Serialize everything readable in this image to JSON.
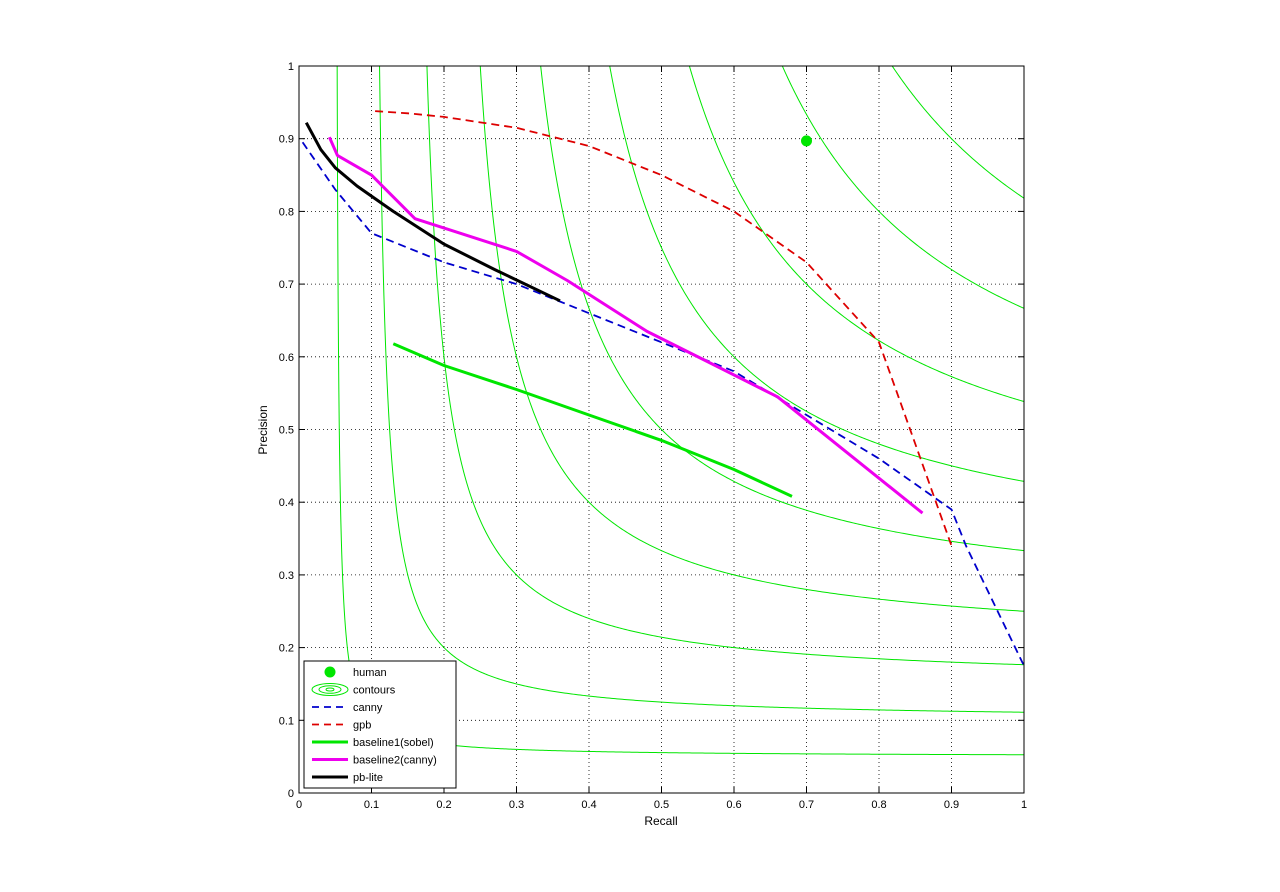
{
  "chart_data": {
    "type": "line",
    "title": "",
    "xlabel": "Recall",
    "ylabel": "Precision",
    "xlim": [
      0,
      1
    ],
    "ylim": [
      0,
      1
    ],
    "xticks": [
      "0",
      "0.1",
      "0.2",
      "0.3",
      "0.4",
      "0.5",
      "0.6",
      "0.7",
      "0.8",
      "0.9",
      "1"
    ],
    "yticks": [
      "0",
      "0.1",
      "0.2",
      "0.3",
      "0.4",
      "0.5",
      "0.6",
      "0.7",
      "0.8",
      "0.9",
      "1"
    ],
    "grid": true,
    "legend_position": "bottom-left",
    "contour_levels": [
      0.1,
      0.2,
      0.3,
      0.4,
      0.5,
      0.6,
      0.7,
      0.8,
      0.9
    ],
    "series": [
      {
        "name": "human",
        "style": "marker",
        "color": "#00e600",
        "x": [
          0.7
        ],
        "y": [
          0.897
        ]
      },
      {
        "name": "contours",
        "style": "contour",
        "color": "#00e600",
        "x": [],
        "y": []
      },
      {
        "name": "canny",
        "style": "dashed",
        "color": "#0000cc",
        "x": [
          0.005,
          0.05,
          0.1,
          0.2,
          0.3,
          0.4,
          0.5,
          0.6,
          0.7,
          0.8,
          0.9,
          0.92,
          1.0
        ],
        "y": [
          0.895,
          0.83,
          0.77,
          0.73,
          0.7,
          0.66,
          0.62,
          0.58,
          0.52,
          0.46,
          0.39,
          0.34,
          0.175
        ]
      },
      {
        "name": "gpb",
        "style": "dashed",
        "color": "#dd0000",
        "x": [
          0.105,
          0.15,
          0.2,
          0.3,
          0.4,
          0.5,
          0.6,
          0.7,
          0.8,
          0.85,
          0.9
        ],
        "y": [
          0.938,
          0.935,
          0.93,
          0.915,
          0.89,
          0.85,
          0.8,
          0.73,
          0.62,
          0.48,
          0.34
        ]
      },
      {
        "name": "baseline1(sobel)",
        "style": "solid",
        "color": "#00e600",
        "x": [
          0.13,
          0.2,
          0.3,
          0.4,
          0.5,
          0.6,
          0.68
        ],
        "y": [
          0.618,
          0.588,
          0.555,
          0.52,
          0.485,
          0.445,
          0.408
        ]
      },
      {
        "name": "baseline2(canny)",
        "style": "solid",
        "color": "#ee00ee",
        "x": [
          0.042,
          0.053,
          0.1,
          0.16,
          0.3,
          0.37,
          0.48,
          0.56,
          0.66,
          0.86
        ],
        "y": [
          0.902,
          0.877,
          0.85,
          0.79,
          0.745,
          0.705,
          0.635,
          0.595,
          0.545,
          0.385
        ]
      },
      {
        "name": "pb-lite",
        "style": "solid",
        "color": "#000000",
        "x": [
          0.01,
          0.03,
          0.05,
          0.08,
          0.13,
          0.2,
          0.27,
          0.36
        ],
        "y": [
          0.922,
          0.885,
          0.86,
          0.835,
          0.8,
          0.755,
          0.72,
          0.677
        ]
      }
    ]
  }
}
